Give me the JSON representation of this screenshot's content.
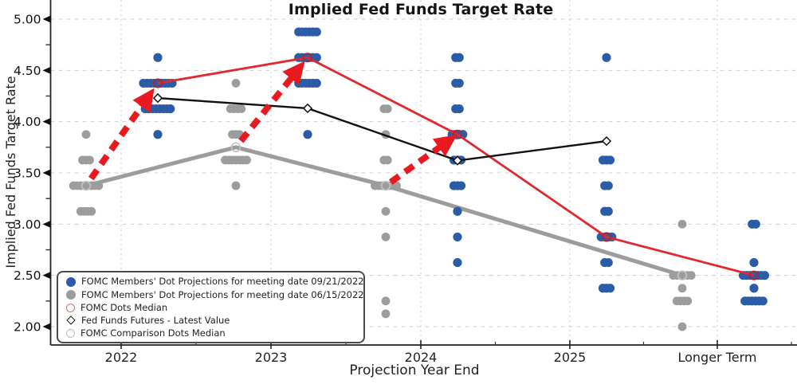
{
  "chart_data": {
    "type": "scatter",
    "title": "Implied Fed Funds Target Rate",
    "xlabel": "Projection Year End",
    "ylabel": "Implied Fed Funds Target Rate",
    "x_categories": [
      "2022",
      "2023",
      "2024",
      "2025",
      "Longer Term"
    ],
    "y_ticks": [
      {
        "value": 5.0,
        "label": "5.00"
      },
      {
        "value": 4.5,
        "label": "4.50"
      },
      {
        "value": 4.0,
        "label": "4.00"
      },
      {
        "value": 3.5,
        "label": "3.50"
      },
      {
        "value": 3.0,
        "label": "3.00"
      },
      {
        "value": 2.5,
        "label": "2.50"
      },
      {
        "value": 2.0,
        "label": "2.00"
      }
    ],
    "y_minor_step": 0.25,
    "ylim": [
      1.85,
      5.18
    ],
    "grid": {
      "horizontal": "dashed",
      "vertical": "dotted",
      "color": "#cfcfcf"
    },
    "legend_position": "bottom-left",
    "series": [
      {
        "id": "sept_dots",
        "name": "FOMC Members' Dot Projections for meeting date 09/21/2022",
        "marker": "filled-circle",
        "color": "#2b5ca7",
        "clusters": {
          "2022": [
            [
              4.625,
              1
            ],
            [
              4.375,
              9
            ],
            [
              4.125,
              8
            ],
            [
              3.875,
              1
            ]
          ],
          "2023": [
            [
              4.875,
              6
            ],
            [
              4.625,
              6
            ],
            [
              4.375,
              6
            ],
            [
              3.875,
              1
            ]
          ],
          "2024": [
            [
              4.625,
              2
            ],
            [
              4.375,
              2
            ],
            [
              4.125,
              2
            ],
            [
              3.875,
              4
            ],
            [
              3.625,
              3
            ],
            [
              3.375,
              3
            ],
            [
              3.125,
              1
            ],
            [
              2.875,
              1
            ],
            [
              2.625,
              1
            ]
          ],
          "2025": [
            [
              4.625,
              1
            ],
            [
              3.625,
              3
            ],
            [
              3.375,
              2
            ],
            [
              3.125,
              2
            ],
            [
              2.875,
              4
            ],
            [
              2.625,
              2
            ],
            [
              2.375,
              3
            ]
          ],
          "Longer Term": [
            [
              3.0,
              2
            ],
            [
              2.625,
              1
            ],
            [
              2.5,
              7
            ],
            [
              2.375,
              1
            ],
            [
              2.25,
              6
            ]
          ]
        }
      },
      {
        "id": "june_dots",
        "name": "FOMC Members' Dot Projections for meeting date 06/15/2022",
        "marker": "filled-circle",
        "color": "#9c9c9c",
        "clusters": {
          "2022": [
            [
              3.875,
              1
            ],
            [
              3.625,
              3
            ],
            [
              3.375,
              8
            ],
            [
              3.125,
              4
            ]
          ],
          "2023": [
            [
              4.375,
              1
            ],
            [
              4.125,
              4
            ],
            [
              3.875,
              3
            ],
            [
              3.625,
              7
            ],
            [
              3.375,
              1
            ]
          ],
          "2024": [
            [
              4.125,
              2
            ],
            [
              3.875,
              1
            ],
            [
              3.625,
              2
            ],
            [
              3.375,
              7
            ],
            [
              3.125,
              1
            ],
            [
              2.875,
              1
            ],
            [
              2.25,
              1
            ],
            [
              2.125,
              1
            ]
          ],
          "Longer Term": [
            [
              3.0,
              1
            ],
            [
              2.5,
              6
            ],
            [
              2.375,
              1
            ],
            [
              2.25,
              4
            ],
            [
              2.0,
              1
            ]
          ]
        }
      },
      {
        "id": "fomc_median",
        "name": "FOMC Dots Median",
        "marker": "open-circle",
        "line": true,
        "color": "#e0282e",
        "points": {
          "2022": 4.375,
          "2023": 4.625,
          "2024": 3.875,
          "2025": 2.875,
          "Longer Term": 2.5
        }
      },
      {
        "id": "futures",
        "name": "Fed Funds Futures - Latest Value",
        "marker": "open-diamond",
        "line": true,
        "color": "#111111",
        "points": {
          "2022": 4.23,
          "2023": 4.13,
          "2024": 3.62,
          "2025": 3.81
        }
      },
      {
        "id": "comparison_median",
        "name": "FOMC Comparison Dots Median",
        "marker": "open-circle",
        "line": true,
        "color": "#c2c2c2",
        "points": {
          "2022": 3.375,
          "2023": 3.75,
          "2024": 3.375,
          "Longer Term": 2.5
        }
      }
    ],
    "annotations": {
      "arrows": [
        {
          "x": "2022",
          "from_series": "june_dots",
          "from_value": 3.375,
          "to_series": "sept_dots",
          "to_value": 4.375,
          "color": "#e8191f",
          "style": "bold-dashed"
        },
        {
          "x": "2023",
          "from_series": "june_dots",
          "from_value": 3.75,
          "to_series": "sept_dots",
          "to_value": 4.625,
          "color": "#e8191f",
          "style": "bold-dashed"
        },
        {
          "x": "2024",
          "from_series": "june_dots",
          "from_value": 3.375,
          "to_series": "sept_dots",
          "to_value": 3.875,
          "color": "#e8191f",
          "style": "bold-dashed"
        }
      ]
    }
  },
  "colors": {
    "sept_blue": "#2b5ca7",
    "june_gray": "#9c9c9c",
    "median_red_line": "#e0282e",
    "arrow_red": "#e8191f",
    "futures_black": "#111111",
    "grid_gray": "#cfcfcf",
    "axis_dark": "#222222"
  }
}
